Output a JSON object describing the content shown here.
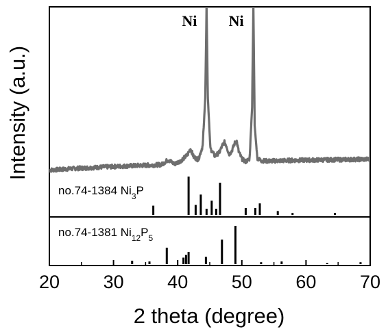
{
  "chart_data": {
    "type": "line",
    "xlabel": "2 theta (degree)",
    "ylabel": "Intensity (a.u.)",
    "xlim": [
      20,
      70
    ],
    "x_ticks": [
      "20",
      "30",
      "40",
      "50",
      "60",
      "70"
    ],
    "grid": false,
    "peak_annotations": [
      {
        "text": "Ni",
        "x": 44.5
      },
      {
        "text": "Ni",
        "x": 51.8
      }
    ],
    "series": [
      {
        "color": "#6e6e6e",
        "x": [
          20,
          22,
          24,
          26,
          28,
          30,
          32,
          34,
          36,
          37.5,
          38.5,
          39.5,
          40.5,
          41.5,
          42.0,
          42.5,
          43.2,
          43.9,
          44.3,
          44.5,
          44.7,
          45.1,
          45.8,
          46.5,
          47.0,
          47.3,
          47.6,
          48.0,
          48.4,
          48.9,
          49.2,
          49.5,
          50.0,
          50.6,
          51.2,
          51.6,
          51.8,
          52.0,
          52.4,
          53.0,
          54,
          56,
          58,
          60,
          62,
          64,
          66,
          68,
          70
        ],
        "y": [
          0.9,
          1.3,
          1.8,
          2.1,
          2.5,
          2.8,
          3.1,
          3.4,
          3.6,
          3.9,
          6.5,
          4.2,
          6.0,
          9.0,
          12.5,
          8.0,
          6.5,
          14.0,
          40.0,
          90.0,
          40.0,
          12.5,
          8.5,
          10.5,
          14.5,
          16.0,
          14.0,
          9.5,
          11.0,
          15.5,
          16.5,
          11.0,
          7.0,
          5.5,
          7.0,
          35.0,
          90.0,
          25.0,
          7.5,
          6.0,
          5.8,
          6.0,
          6.2,
          6.3,
          6.4,
          6.5,
          6.6,
          6.7,
          6.8
        ]
      }
    ],
    "references": [
      {
        "label": "no.74-1384 Ni",
        "sub1": "3",
        "mid": "P",
        "sub2": "",
        "peaks": [
          {
            "x": 36.2,
            "h": 0.24
          },
          {
            "x": 41.7,
            "h": 1.0
          },
          {
            "x": 42.8,
            "h": 0.26
          },
          {
            "x": 43.6,
            "h": 0.53
          },
          {
            "x": 44.5,
            "h": 0.16
          },
          {
            "x": 45.3,
            "h": 0.37
          },
          {
            "x": 46.0,
            "h": 0.16
          },
          {
            "x": 46.6,
            "h": 0.84
          },
          {
            "x": 50.6,
            "h": 0.18
          },
          {
            "x": 52.1,
            "h": 0.18
          },
          {
            "x": 52.8,
            "h": 0.3
          },
          {
            "x": 55.6,
            "h": 0.1
          },
          {
            "x": 57.9,
            "h": 0.05
          },
          {
            "x": 64.5,
            "h": 0.05
          }
        ]
      },
      {
        "label": "no.74-1381 Ni",
        "sub1": "12",
        "mid": "P",
        "sub2": "5",
        "peaks": [
          {
            "x": 32.9,
            "h": 0.09
          },
          {
            "x": 35.6,
            "h": 0.07
          },
          {
            "x": 38.3,
            "h": 0.43
          },
          {
            "x": 40.9,
            "h": 0.17
          },
          {
            "x": 41.3,
            "h": 0.24
          },
          {
            "x": 41.7,
            "h": 0.32
          },
          {
            "x": 44.4,
            "h": 0.19
          },
          {
            "x": 46.9,
            "h": 0.64
          },
          {
            "x": 49.0,
            "h": 1.0
          },
          {
            "x": 53.0,
            "h": 0.05
          },
          {
            "x": 56.2,
            "h": 0.07
          },
          {
            "x": 63.3,
            "h": 0.03
          },
          {
            "x": 68.5,
            "h": 0.05
          }
        ]
      }
    ]
  }
}
